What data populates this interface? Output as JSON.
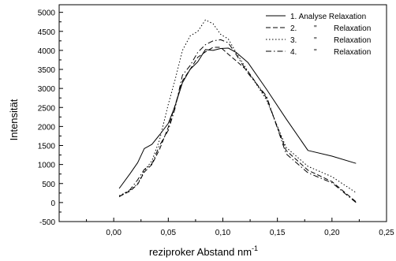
{
  "chart_data": {
    "type": "line",
    "xlabel": "reziproker Abstand nm",
    "xlabel_sup": "-1",
    "ylabel": "Intensität",
    "xlim": [
      -0.05,
      0.25
    ],
    "ylim": [
      -500,
      5200
    ],
    "x_ticks": [
      0.0,
      0.05,
      0.1,
      0.15,
      0.2,
      0.25
    ],
    "x_tick_labels": [
      "0,00",
      "0,05",
      "0,10",
      "0,15",
      "0,20",
      "0,25"
    ],
    "y_ticks": [
      -500,
      0,
      500,
      1000,
      1500,
      2000,
      2500,
      3000,
      3500,
      4000,
      4500,
      5000
    ],
    "y_tick_labels": [
      "-500",
      "0",
      "500",
      "1000",
      "1500",
      "2000",
      "2500",
      "3000",
      "3500",
      "4000",
      "4500",
      "5000"
    ],
    "grid": false,
    "legend_position": "top-right",
    "series": [
      {
        "name": "1. Analyse Relaxation",
        "dash": "",
        "x": [
          0.005,
          0.015,
          0.022,
          0.028,
          0.035,
          0.042,
          0.05,
          0.056,
          0.063,
          0.07,
          0.077,
          0.084,
          0.091,
          0.098,
          0.105,
          0.112,
          0.123,
          0.14,
          0.158,
          0.178,
          0.2,
          0.222
        ],
        "y": [
          370,
          760,
          1050,
          1420,
          1530,
          1780,
          2080,
          2520,
          3150,
          3500,
          3700,
          4020,
          4000,
          4050,
          4060,
          3950,
          3680,
          2980,
          2200,
          1370,
          1220,
          1030
        ]
      },
      {
        "name": "2.",
        "ditto": "\"",
        "suffix": "Relaxation",
        "dash": "6,3",
        "x": [
          0.005,
          0.015,
          0.022,
          0.028,
          0.035,
          0.042,
          0.05,
          0.056,
          0.063,
          0.07,
          0.077,
          0.084,
          0.091,
          0.098,
          0.105,
          0.112,
          0.123,
          0.14,
          0.158,
          0.178,
          0.2,
          0.222
        ],
        "y": [
          160,
          300,
          480,
          800,
          1000,
          1400,
          1980,
          2530,
          3200,
          3500,
          3820,
          3960,
          4080,
          4080,
          3900,
          3730,
          3450,
          2750,
          1370,
          850,
          550,
          20
        ]
      },
      {
        "name": "3.",
        "ditto": "\"",
        "suffix": "Relaxation",
        "dash": "1.5,2.5",
        "x": [
          0.005,
          0.015,
          0.022,
          0.028,
          0.035,
          0.042,
          0.05,
          0.056,
          0.063,
          0.07,
          0.077,
          0.084,
          0.091,
          0.098,
          0.105,
          0.112,
          0.123,
          0.14,
          0.158,
          0.178,
          0.2,
          0.222
        ],
        "y": [
          180,
          320,
          500,
          830,
          1100,
          1650,
          2580,
          3200,
          4000,
          4380,
          4500,
          4800,
          4700,
          4420,
          4300,
          3950,
          3450,
          2700,
          1450,
          950,
          680,
          260
        ]
      },
      {
        "name": "4.",
        "ditto": "\"",
        "suffix": "Relaxation",
        "dash": "7,3,1.5,3",
        "x": [
          0.005,
          0.015,
          0.022,
          0.028,
          0.035,
          0.042,
          0.05,
          0.056,
          0.063,
          0.07,
          0.077,
          0.084,
          0.091,
          0.098,
          0.105,
          0.112,
          0.123,
          0.14,
          0.158,
          0.178,
          0.2,
          0.222
        ],
        "y": [
          150,
          340,
          600,
          870,
          1020,
          1500,
          1900,
          2450,
          3350,
          3600,
          3950,
          4150,
          4250,
          4280,
          4200,
          3900,
          3400,
          2800,
          1280,
          780,
          520,
          0
        ]
      }
    ]
  }
}
